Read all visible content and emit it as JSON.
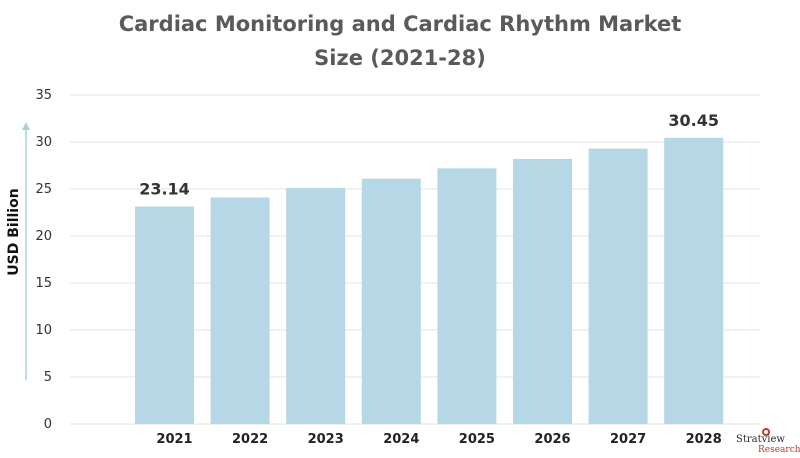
{
  "chart_data": {
    "type": "bar",
    "title_line1": "Cardiac Monitoring and Cardiac Rhythm Market",
    "title_line2": "Size (2021-28)",
    "ylabel": "USD Billion",
    "categories": [
      "2021",
      "2022",
      "2023",
      "2024",
      "2025",
      "2026",
      "2027",
      "2028"
    ],
    "values": [
      23.14,
      24.1,
      25.1,
      26.1,
      27.2,
      28.2,
      29.3,
      30.45
    ],
    "data_labels": [
      {
        "index": 0,
        "text": "23.14"
      },
      {
        "index": 7,
        "text": "30.45"
      }
    ],
    "ylim": [
      0,
      35
    ],
    "yticks": [
      0,
      5,
      10,
      15,
      20,
      25,
      30,
      35
    ],
    "grid": true,
    "bar_color": "#b5d7e6"
  },
  "branding": {
    "logo_name": "Stratview",
    "logo_sub": "Research"
  }
}
